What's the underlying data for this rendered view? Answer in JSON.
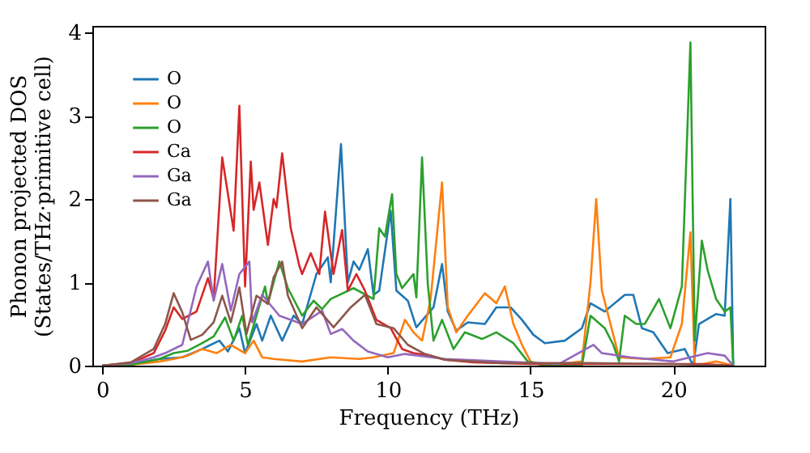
{
  "chart_data": {
    "type": "line",
    "xlabel": "Frequency (THz)",
    "ylabel": "Phonon projected DOS\n(States/THz·primitive cell)",
    "xlim": [
      -0.35,
      23.2
    ],
    "ylim": [
      0,
      4.08
    ],
    "xticks": [
      0,
      5,
      10,
      15,
      20
    ],
    "yticks": [
      0,
      1,
      2,
      3,
      4
    ],
    "grid": false,
    "legend": "top left",
    "series": [
      {
        "name": "O",
        "color": "#1f77b4",
        "x": [
          0,
          1,
          2.0,
          2.8,
          3.5,
          4.1,
          4.4,
          4.8,
          5.0,
          5.4,
          5.6,
          5.9,
          6.3,
          6.7,
          7.0,
          7.5,
          7.9,
          8.0,
          8.36,
          8.6,
          8.8,
          9.0,
          9.3,
          9.5,
          9.7,
          10.1,
          10.3,
          10.7,
          11.0,
          11.6,
          11.9,
          12.1,
          12.4,
          12.8,
          13.4,
          13.8,
          14.3,
          14.7,
          15.1,
          15.5,
          16.2,
          16.8,
          17.1,
          17.6,
          18.3,
          18.6,
          18.9,
          19.3,
          19.8,
          20.4,
          20.7,
          20.9,
          21.5,
          21.8,
          22.0,
          22.1
        ],
        "values": [
          0,
          0.02,
          0.08,
          0.1,
          0.2,
          0.3,
          0.17,
          0.45,
          0.15,
          0.5,
          0.3,
          0.6,
          0.3,
          0.6,
          0.5,
          1.1,
          1.3,
          1.0,
          2.66,
          1.0,
          1.25,
          1.15,
          1.4,
          0.85,
          0.9,
          1.86,
          0.9,
          0.78,
          0.46,
          0.7,
          1.22,
          0.65,
          0.42,
          0.52,
          0.5,
          0.7,
          0.7,
          0.55,
          0.37,
          0.27,
          0.3,
          0.45,
          0.75,
          0.65,
          0.85,
          0.85,
          0.45,
          0.4,
          0.15,
          0.2,
          0,
          0.5,
          0.62,
          0.6,
          2.0,
          0
        ]
      },
      {
        "name": "O",
        "color": "#ff7f0e",
        "x": [
          0,
          1,
          2,
          2.5,
          3,
          3.5,
          4,
          4.5,
          5,
          5.3,
          5.6,
          6,
          7,
          8,
          9,
          9.5,
          10.2,
          10.6,
          10.9,
          11.2,
          11.5,
          11.9,
          12.1,
          12.4,
          12.8,
          13.4,
          13.8,
          14.1,
          14.4,
          14.7,
          15,
          15.5,
          16.8,
          17.1,
          17.3,
          17.5,
          17.8,
          18.1,
          19,
          19.9,
          20.3,
          20.6,
          20.75,
          21.5,
          22.1
        ],
        "values": [
          0,
          0.01,
          0.05,
          0.08,
          0.12,
          0.2,
          0.15,
          0.25,
          0.15,
          0.3,
          0.1,
          0.08,
          0.05,
          0.1,
          0.08,
          0.1,
          0.15,
          0.55,
          0.4,
          0.3,
          0.8,
          2.2,
          0.7,
          0.4,
          0.6,
          0.87,
          0.75,
          0.95,
          0.5,
          0.25,
          0.05,
          0,
          0.05,
          1.0,
          2.0,
          0.9,
          0.5,
          0.1,
          0.08,
          0.1,
          0.5,
          1.6,
          0,
          0.05,
          0
        ]
      },
      {
        "name": "O",
        "color": "#2ca02c",
        "x": [
          0,
          1,
          2.0,
          2.5,
          3.0,
          3.5,
          3.9,
          4.3,
          4.6,
          4.9,
          5.1,
          5.4,
          5.7,
          5.8,
          6.2,
          6.5,
          7.0,
          7.4,
          7.7,
          8.0,
          8.8,
          9.5,
          9.7,
          9.9,
          10.15,
          10.3,
          10.5,
          10.9,
          11.0,
          11.2,
          11.4,
          11.6,
          11.9,
          12.3,
          12.7,
          13.3,
          13.8,
          14.4,
          14.9,
          15.5,
          16.8,
          17.1,
          17.6,
          17.9,
          18.1,
          18.3,
          18.7,
          19.0,
          19.5,
          19.9,
          20.3,
          20.6,
          20.75,
          21.0,
          21.2,
          21.5,
          21.8,
          22.0,
          22.1
        ],
        "values": [
          0,
          0.01,
          0.08,
          0.15,
          0.18,
          0.27,
          0.35,
          0.58,
          0.3,
          0.6,
          0.25,
          0.6,
          0.95,
          0.75,
          1.25,
          0.93,
          0.6,
          0.78,
          0.68,
          0.8,
          0.93,
          0.8,
          1.65,
          1.55,
          2.06,
          1.1,
          0.93,
          1.1,
          0.82,
          2.5,
          0.98,
          0.3,
          0.55,
          0.2,
          0.4,
          0.32,
          0.4,
          0.27,
          0.05,
          0,
          0,
          0.6,
          0.45,
          0.25,
          0.05,
          0.6,
          0.5,
          0.5,
          0.8,
          0.45,
          0.95,
          3.88,
          0.3,
          1.5,
          1.15,
          0.8,
          0.65,
          0.7,
          0
        ]
      },
      {
        "name": "Ca",
        "color": "#d62728",
        "x": [
          0,
          1,
          1.8,
          2.2,
          2.5,
          2.8,
          3.3,
          3.7,
          3.9,
          4.2,
          4.6,
          4.8,
          5.0,
          5.2,
          5.3,
          5.5,
          5.8,
          6.0,
          6.1,
          6.3,
          6.6,
          6.9,
          7.0,
          7.3,
          7.6,
          7.8,
          8.1,
          8.4,
          8.6,
          8.9,
          9.2,
          9.6,
          10.1,
          10.5,
          10.9,
          11.5,
          12.0,
          13,
          14,
          15,
          17,
          19,
          21,
          22.1
        ],
        "values": [
          0,
          0.03,
          0.15,
          0.42,
          0.7,
          0.56,
          0.65,
          1.05,
          0.8,
          2.5,
          1.62,
          3.12,
          0.95,
          2.45,
          1.87,
          2.2,
          1.45,
          2.0,
          1.9,
          2.55,
          1.65,
          1.2,
          1.1,
          1.35,
          1.1,
          1.85,
          1.1,
          1.63,
          0.9,
          1.1,
          0.9,
          0.55,
          0.45,
          0.2,
          0.15,
          0.12,
          0.07,
          0.04,
          0.03,
          0.02,
          0.02,
          0.02,
          0.02,
          0
        ]
      },
      {
        "name": "Ga",
        "color": "#9467bd",
        "x": [
          0,
          1,
          1.8,
          2.2,
          2.8,
          3.3,
          3.7,
          3.9,
          4.2,
          4.5,
          4.8,
          5.15,
          5.25,
          5.6,
          6.2,
          7.0,
          7.7,
          8.0,
          8.4,
          8.8,
          9.3,
          10.0,
          10.6,
          12,
          14,
          16,
          17.2,
          17.5,
          18.5,
          20,
          21.2,
          21.8,
          22.1
        ],
        "values": [
          0,
          0.03,
          0.1,
          0.15,
          0.25,
          0.95,
          1.25,
          0.78,
          1.22,
          0.66,
          1.1,
          1.25,
          0.52,
          0.85,
          0.6,
          0.5,
          0.66,
          0.38,
          0.44,
          0.3,
          0.17,
          0.1,
          0.14,
          0.08,
          0.05,
          0.02,
          0.25,
          0.15,
          0.1,
          0.05,
          0.15,
          0.12,
          0
        ]
      },
      {
        "name": "Ga",
        "color": "#8c564b",
        "x": [
          0,
          1,
          1.8,
          2.2,
          2.5,
          2.8,
          3.1,
          3.5,
          3.9,
          4.2,
          4.5,
          4.8,
          5.05,
          5.4,
          5.8,
          6.0,
          6.3,
          6.5,
          7.0,
          7.5,
          8.1,
          8.7,
          9.2,
          9.6,
          10.2,
          10.7,
          11.3,
          12.0,
          14,
          17,
          20,
          22.1
        ],
        "values": [
          0,
          0.04,
          0.2,
          0.5,
          0.87,
          0.64,
          0.31,
          0.37,
          0.52,
          0.84,
          0.52,
          0.94,
          0.38,
          0.84,
          0.74,
          1.06,
          1.25,
          0.84,
          0.45,
          0.7,
          0.46,
          0.7,
          0.85,
          0.5,
          0.45,
          0.25,
          0.14,
          0.07,
          0.03,
          0.03,
          0.02,
          0
        ]
      }
    ]
  }
}
